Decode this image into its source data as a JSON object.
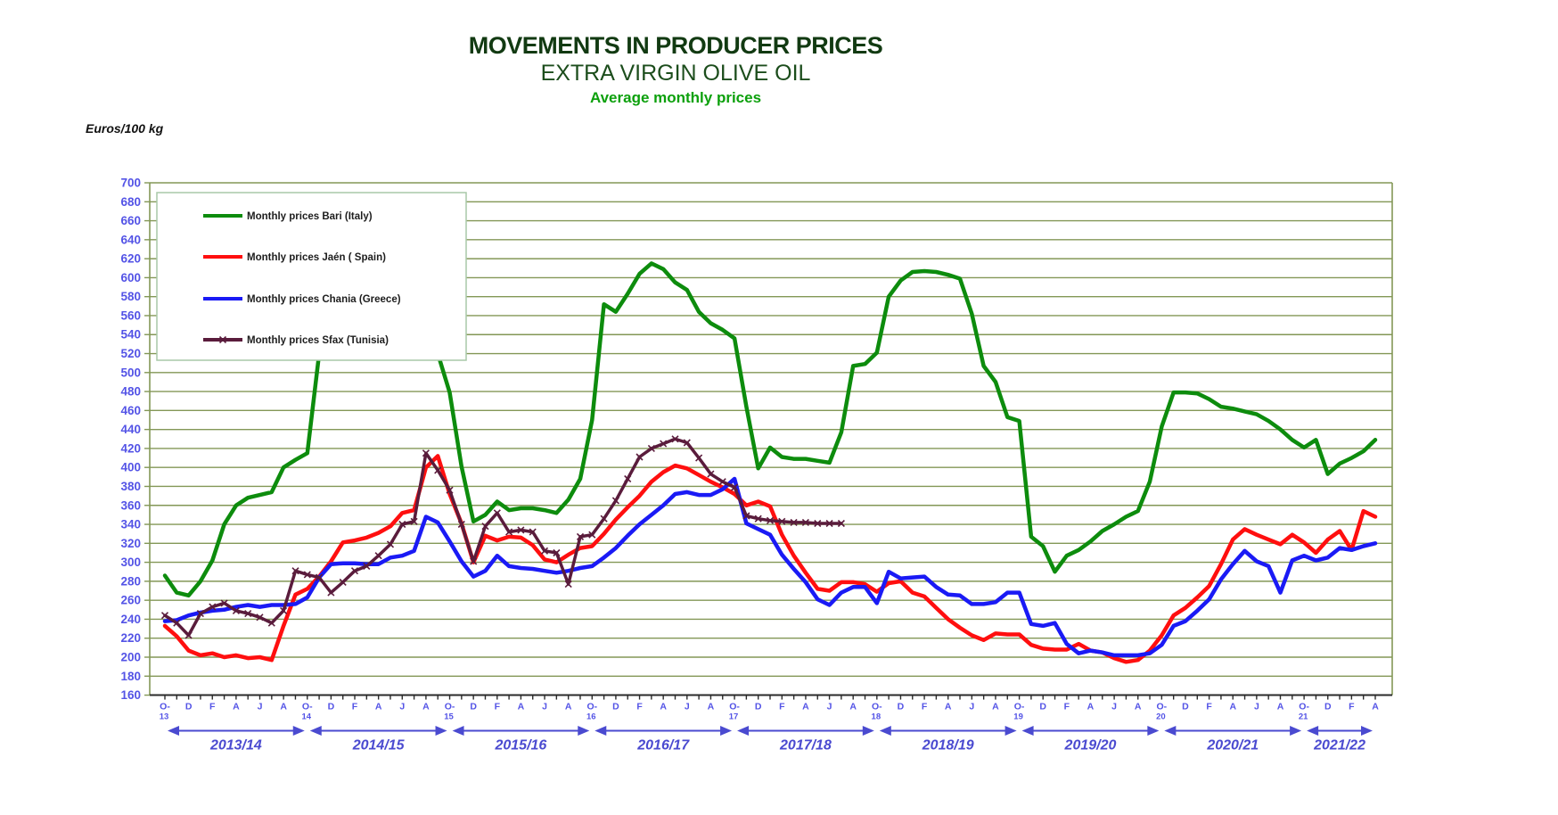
{
  "titles": {
    "title": "MOVEMENTS IN PRODUCER PRICES",
    "subtitle": "EXTRA VIRGIN OLIVE OIL",
    "subsubtitle": "Average monthly prices",
    "unit_label": "Euros/100 kg"
  },
  "colors": {
    "grid": "#839756",
    "axis_label": "#5353e6",
    "season": "#4a4ad0",
    "axis_line": "#2a2a2a",
    "legend_border": "#a9c9a9",
    "legend_text": "#1d1d1d"
  },
  "chart_data": {
    "type": "line",
    "title": "MOVEMENTS IN PRODUCER PRICES",
    "ylabel": "Euros/100 kg",
    "ylim": [
      160,
      700
    ],
    "ytick_step": 20,
    "x_start": "Oct-2013",
    "x_end": "Apr-2022",
    "grid": true,
    "legend_position": "top-left",
    "x_tick_labels": [
      "O-13",
      "D",
      "F",
      "A",
      "J",
      "A",
      "O-14",
      "D",
      "F",
      "A",
      "J",
      "A",
      "O-15",
      "D",
      "F",
      "A",
      "J",
      "A",
      "O-16",
      "D",
      "F",
      "A",
      "J",
      "A",
      "O-17",
      "D",
      "F",
      "A",
      "J",
      "A",
      "O-18",
      "D",
      "F",
      "A",
      "J",
      "A",
      "O-19",
      "D",
      "F",
      "A",
      "J",
      "A",
      "O-20",
      "D",
      "F",
      "A",
      "J",
      "A",
      "O-21",
      "D",
      "F",
      "A"
    ],
    "seasons": [
      "2013/14",
      "2014/15",
      "2015/16",
      "2016/17",
      "2017/18",
      "2018/19",
      "2019/20",
      "2020/21",
      "2021/22"
    ],
    "series": [
      {
        "name": "Monthly prices Bari (Italy)",
        "color": "#0d8c0d",
        "marker": "none",
        "width": 4.5,
        "values": [
          286,
          268,
          265,
          280,
          302,
          340,
          360,
          368,
          371,
          374,
          400,
          408,
          415,
          520,
          575,
          615,
          640,
          650,
          645,
          630,
          610,
          585,
          555,
          520,
          479,
          401,
          343,
          350,
          364,
          355,
          357,
          357,
          355,
          352,
          366,
          388,
          450,
          572,
          564,
          583,
          604,
          615,
          609,
          595,
          587,
          564,
          552,
          545,
          536,
          464,
          399,
          421,
          411,
          409,
          409,
          407,
          405,
          437,
          507,
          509,
          521,
          580,
          597,
          606,
          607,
          606,
          603,
          599,
          562,
          507,
          490,
          453,
          449,
          327,
          317,
          290,
          307,
          313,
          322,
          333,
          340,
          348,
          354,
          385,
          443,
          479,
          479,
          478,
          472,
          464,
          462,
          459,
          456,
          449,
          440,
          429,
          421,
          429,
          393,
          404,
          410,
          417,
          429
        ]
      },
      {
        "name": "Monthly prices Jaén ( Spain)",
        "color": "#ff0f0f",
        "marker": "none",
        "width": 4.5,
        "values": [
          233,
          222,
          207,
          202,
          204,
          200,
          202,
          199,
          200,
          197,
          233,
          266,
          272,
          285,
          301,
          321,
          323,
          326,
          331,
          338,
          352,
          355,
          400,
          412,
          372,
          341,
          300,
          328,
          323,
          327,
          326,
          318,
          303,
          300,
          308,
          315,
          317,
          330,
          345,
          358,
          370,
          385,
          395,
          402,
          399,
          392,
          385,
          379,
          372,
          360,
          364,
          359,
          329,
          307,
          289,
          272,
          270,
          279,
          279,
          277,
          269,
          278,
          280,
          268,
          264,
          252,
          240,
          231,
          223,
          218,
          225,
          224,
          224,
          213,
          209,
          208,
          208,
          214,
          207,
          205,
          199,
          195,
          197,
          207,
          223,
          244,
          252,
          263,
          275,
          298,
          324,
          335,
          329,
          324,
          319,
          329,
          321,
          310,
          324,
          333,
          313,
          354,
          348
        ]
      },
      {
        "name": "Monthly prices Chania (Greece)",
        "color": "#1a1af5",
        "marker": "none",
        "width": 4.5,
        "values": [
          238,
          239,
          244,
          247,
          249,
          250,
          253,
          255,
          253,
          255,
          255,
          256,
          263,
          284,
          298,
          299,
          299,
          298,
          298,
          305,
          307,
          312,
          348,
          342,
          322,
          301,
          285,
          291,
          307,
          296,
          294,
          293,
          291,
          289,
          291,
          294,
          296,
          305,
          315,
          328,
          340,
          350,
          360,
          372,
          374,
          371,
          371,
          377,
          388,
          341,
          335,
          329,
          308,
          293,
          279,
          261,
          255,
          268,
          274,
          274,
          257,
          290,
          283,
          284,
          285,
          274,
          266,
          265,
          256,
          256,
          258,
          268,
          268,
          235,
          233,
          236,
          214,
          204,
          207,
          205,
          202,
          202,
          202,
          204,
          213,
          233,
          238,
          249,
          261,
          282,
          298,
          312,
          301,
          296,
          268,
          302,
          307,
          302,
          305,
          315,
          313,
          317,
          320
        ]
      },
      {
        "name": "Monthly prices Sfax (Tunisia)",
        "color": "#5a1c3c",
        "marker": "x",
        "width": 3.5,
        "values": [
          244,
          236,
          223,
          246,
          253,
          257,
          249,
          246,
          242,
          236,
          249,
          291,
          287,
          284,
          268,
          279,
          291,
          296,
          307,
          319,
          340,
          343,
          415,
          397,
          376,
          340,
          301,
          338,
          352,
          332,
          334,
          332,
          312,
          310,
          277,
          327,
          329,
          346,
          365,
          388,
          411,
          420,
          425,
          430,
          426,
          410,
          393,
          385,
          379,
          349,
          346,
          344,
          343,
          342,
          342,
          341,
          341,
          341,
          null,
          null,
          null,
          null,
          null,
          null,
          null,
          null,
          null,
          null,
          null,
          null,
          null,
          null,
          null,
          null,
          null,
          null,
          null,
          null,
          null,
          null,
          null,
          null,
          null,
          null,
          null,
          null,
          null,
          null,
          null,
          null,
          null,
          null,
          null,
          null,
          null,
          null,
          null,
          null,
          null,
          null,
          null,
          null,
          null
        ]
      }
    ]
  }
}
